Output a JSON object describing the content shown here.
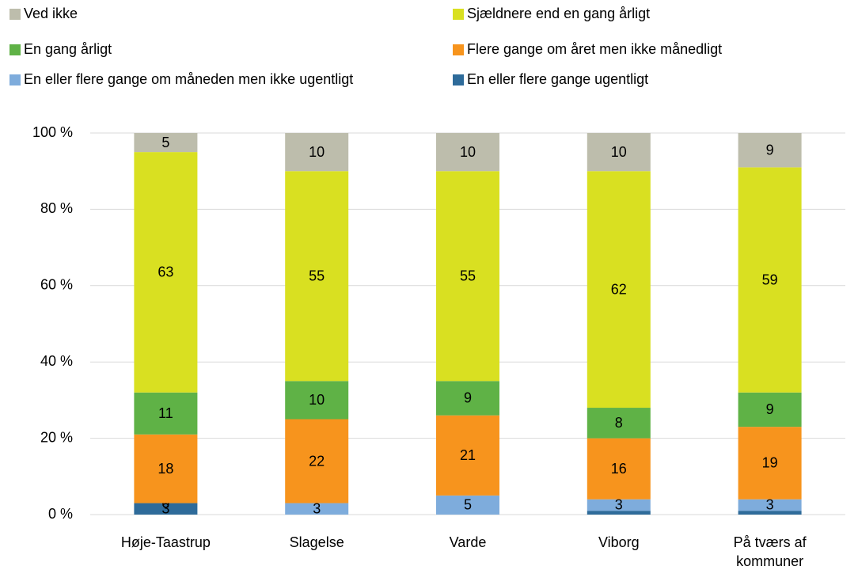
{
  "chart_data": {
    "type": "stacked_bar",
    "categories": [
      "Høje-Taastrup",
      "Slagelse",
      "Varde",
      "Viborg",
      "På tværs af kommuner"
    ],
    "series": [
      {
        "name": "En eller flere gange ugentligt",
        "color": "#2e6b9a",
        "values": [
          3,
          null,
          null,
          1,
          1
        ],
        "value_labels": [
          "3",
          null,
          null,
          null,
          null
        ]
      },
      {
        "name": "En eller flere gange om måneden men ikke ugentligt",
        "color": "#7eacdc",
        "values": [
          0,
          3,
          5,
          3,
          3
        ]
      },
      {
        "name": "Flere gange om året men ikke månedligt",
        "color": "#f7941d",
        "values": [
          18,
          22,
          21,
          16,
          19
        ]
      },
      {
        "name": "En gang årligt",
        "color": "#5fb246",
        "values": [
          11,
          10,
          9,
          8,
          9
        ]
      },
      {
        "name": "Sjældnere end en gang årligt",
        "color": "#d9e021",
        "values": [
          63,
          55,
          55,
          62,
          59
        ]
      },
      {
        "name": "Ved ikke",
        "color": "#bdbdac",
        "values": [
          5,
          10,
          10,
          10,
          9
        ]
      }
    ],
    "ylim": [
      0,
      100
    ],
    "yticks": [
      {
        "value": 0,
        "label": "0 %"
      },
      {
        "value": 20,
        "label": "20 %"
      },
      {
        "value": 40,
        "label": "40 %"
      },
      {
        "value": 60,
        "label": "60 %"
      },
      {
        "value": 80,
        "label": "80 %"
      },
      {
        "value": 100,
        "label": "100 %"
      }
    ],
    "grid": true
  }
}
